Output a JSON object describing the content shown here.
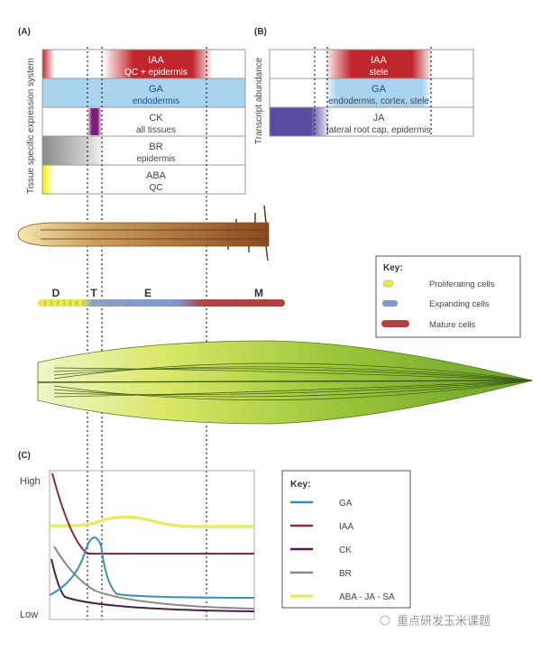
{
  "panelA": {
    "label": "(A)",
    "axis_label": "Tissue specific expression system",
    "rows": [
      {
        "hormone": "IAA",
        "tissue": "QC + epidermis"
      },
      {
        "hormone": "GA",
        "tissue": "endodermis"
      },
      {
        "hormone": "CK",
        "tissue": "all tissues"
      },
      {
        "hormone": "BR",
        "tissue": "epidermis"
      },
      {
        "hormone": "ABA",
        "tissue": "QC"
      }
    ]
  },
  "panelB": {
    "label": "(B)",
    "axis_label": "Transcript abundance",
    "rows": [
      {
        "hormone": "IAA",
        "tissue": "stele"
      },
      {
        "hormone": "GA",
        "tissue": "endodermis, cortex, stele"
      },
      {
        "hormone": "JA",
        "tissue": "lateral root cap, epidermis"
      }
    ]
  },
  "zones": {
    "d": "D",
    "t": "T",
    "e": "E",
    "m": "M"
  },
  "cell_key": {
    "title": "Key:",
    "items": [
      {
        "label": "Proliferating cells",
        "color": "#e8e84a"
      },
      {
        "label": "Expanding cells",
        "color": "#7f97cf"
      },
      {
        "label": "Mature cells",
        "color": "#b0413e"
      }
    ]
  },
  "panelC": {
    "label": "(C)",
    "y_high": "High",
    "y_low": "Low",
    "key_title": "Key:",
    "series": [
      {
        "name": "GA",
        "color": "#3a8fb5"
      },
      {
        "name": "IAA",
        "color": "#8b2a3a"
      },
      {
        "name": "CK",
        "color": "#4a1f4a"
      },
      {
        "name": "BR",
        "color": "#888888"
      },
      {
        "name": "ABA - JA - SA",
        "color": "#e6ec6a"
      }
    ]
  },
  "watermark": "重点研发玉米课题"
}
